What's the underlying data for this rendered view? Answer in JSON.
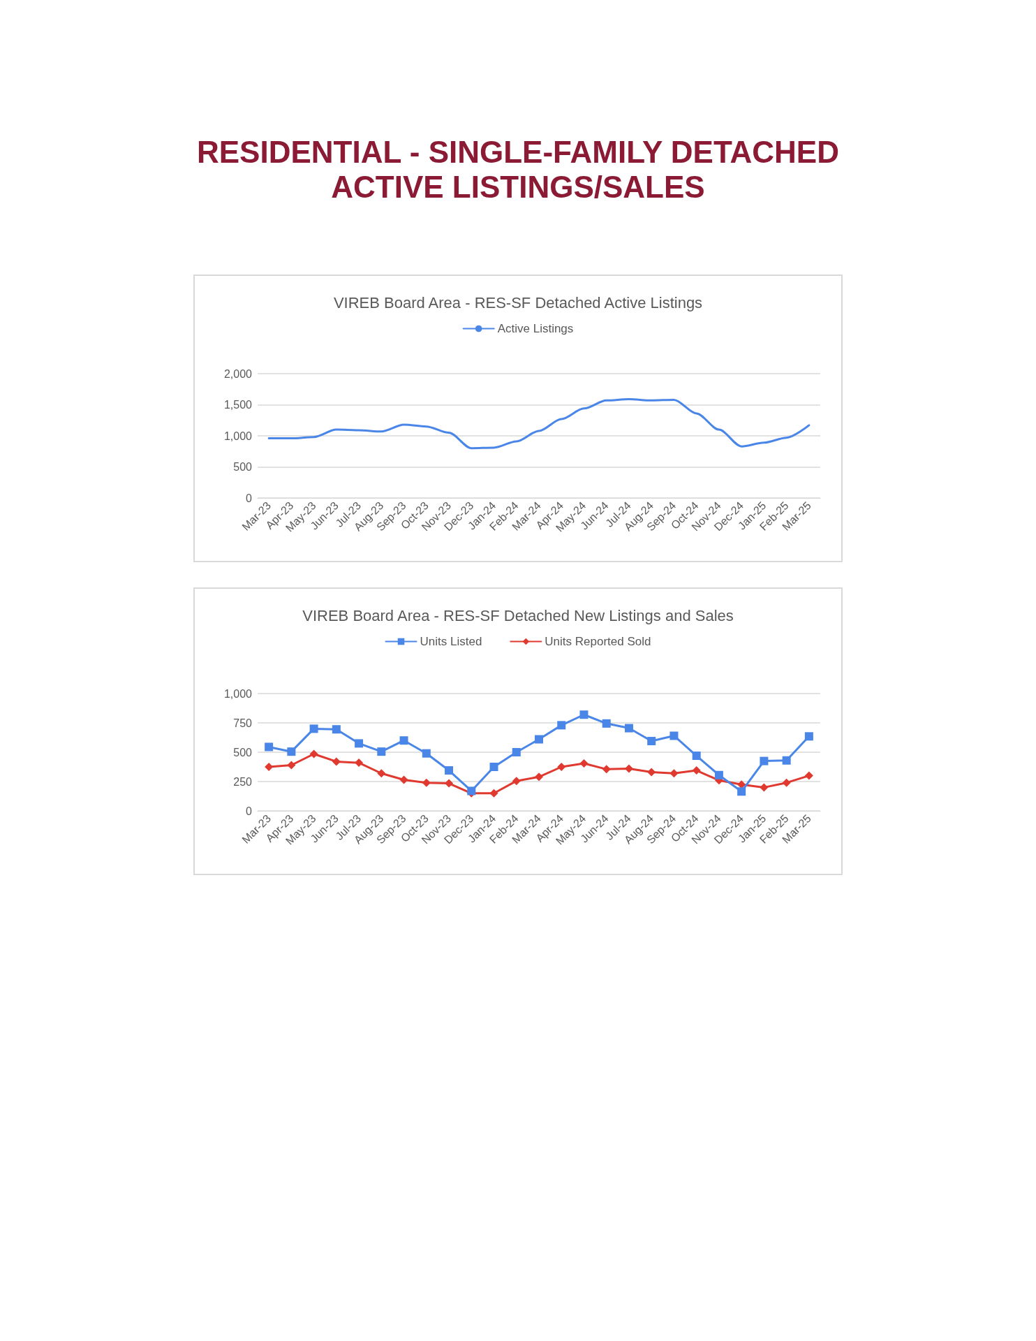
{
  "chart_data": [
    {
      "type": "line",
      "title": "VIREB Board Area - RES-SF Detached Active Listings",
      "annotations": [
        "RESIDENTIAL - SINGLE-FAMILY DETACHED",
        "ACTIVE LISTINGS/SALES"
      ],
      "categories": [
        "Mar-23",
        "Apr-23",
        "May-23",
        "Jun-23",
        "Jul-23",
        "Aug-23",
        "Sep-23",
        "Oct-23",
        "Nov-23",
        "Dec-23",
        "Jan-24",
        "Feb-24",
        "Mar-24",
        "Apr-24",
        "May-24",
        "Jun-24",
        "Jul-24",
        "Aug-24",
        "Sep-24",
        "Oct-24",
        "Nov-24",
        "Dec-24",
        "Jan-25",
        "Feb-25",
        "Mar-25"
      ],
      "series": [
        {
          "name": "Active Listings",
          "color": "#4a86e8",
          "marker": "none",
          "values": [
            960,
            960,
            980,
            1100,
            1090,
            1070,
            1180,
            1150,
            1050,
            800,
            810,
            910,
            1080,
            1270,
            1440,
            1570,
            1590,
            1570,
            1580,
            1360,
            1100,
            830,
            890,
            970,
            1170
          ]
        }
      ],
      "ylim": [
        0,
        2000
      ],
      "yticks": [
        {
          "value": 0,
          "label": "0"
        },
        {
          "value": 500,
          "label": "500"
        },
        {
          "value": 1000,
          "label": "1,000"
        },
        {
          "value": 1500,
          "label": "1,500"
        },
        {
          "value": 2000,
          "label": "2,000"
        }
      ],
      "grid": "y",
      "legend": "top"
    },
    {
      "type": "line",
      "title": "VIREB Board Area - RES-SF Detached New Listings and Sales",
      "categories": [
        "Mar-23",
        "Apr-23",
        "May-23",
        "Jun-23",
        "Jul-23",
        "Aug-23",
        "Sep-23",
        "Oct-23",
        "Nov-23",
        "Dec-23",
        "Jan-24",
        "Feb-24",
        "Mar-24",
        "Apr-24",
        "May-24",
        "Jun-24",
        "Jul-24",
        "Aug-24",
        "Sep-24",
        "Oct-24",
        "Nov-24",
        "Dec-24",
        "Jan-25",
        "Feb-25",
        "Mar-25"
      ],
      "series": [
        {
          "name": "Units Listed",
          "color": "#4a86e8",
          "marker": "square",
          "values": [
            545,
            505,
            700,
            695,
            575,
            505,
            600,
            490,
            345,
            170,
            375,
            500,
            610,
            730,
            820,
            745,
            705,
            595,
            640,
            470,
            305,
            165,
            425,
            430,
            635
          ]
        },
        {
          "name": "Units Reported Sold",
          "color": "#e0392f",
          "marker": "diamond",
          "values": [
            375,
            390,
            485,
            420,
            410,
            320,
            265,
            240,
            235,
            150,
            150,
            255,
            290,
            375,
            405,
            355,
            360,
            330,
            320,
            345,
            260,
            225,
            200,
            240,
            300
          ]
        }
      ],
      "ylim": [
        0,
        1000
      ],
      "yticks": [
        {
          "value": 0,
          "label": "0"
        },
        {
          "value": 250,
          "label": "250"
        },
        {
          "value": 500,
          "label": "500"
        },
        {
          "value": 750,
          "label": "750"
        },
        {
          "value": 1000,
          "label": "1,000"
        }
      ],
      "grid": "y",
      "legend": "top"
    }
  ]
}
